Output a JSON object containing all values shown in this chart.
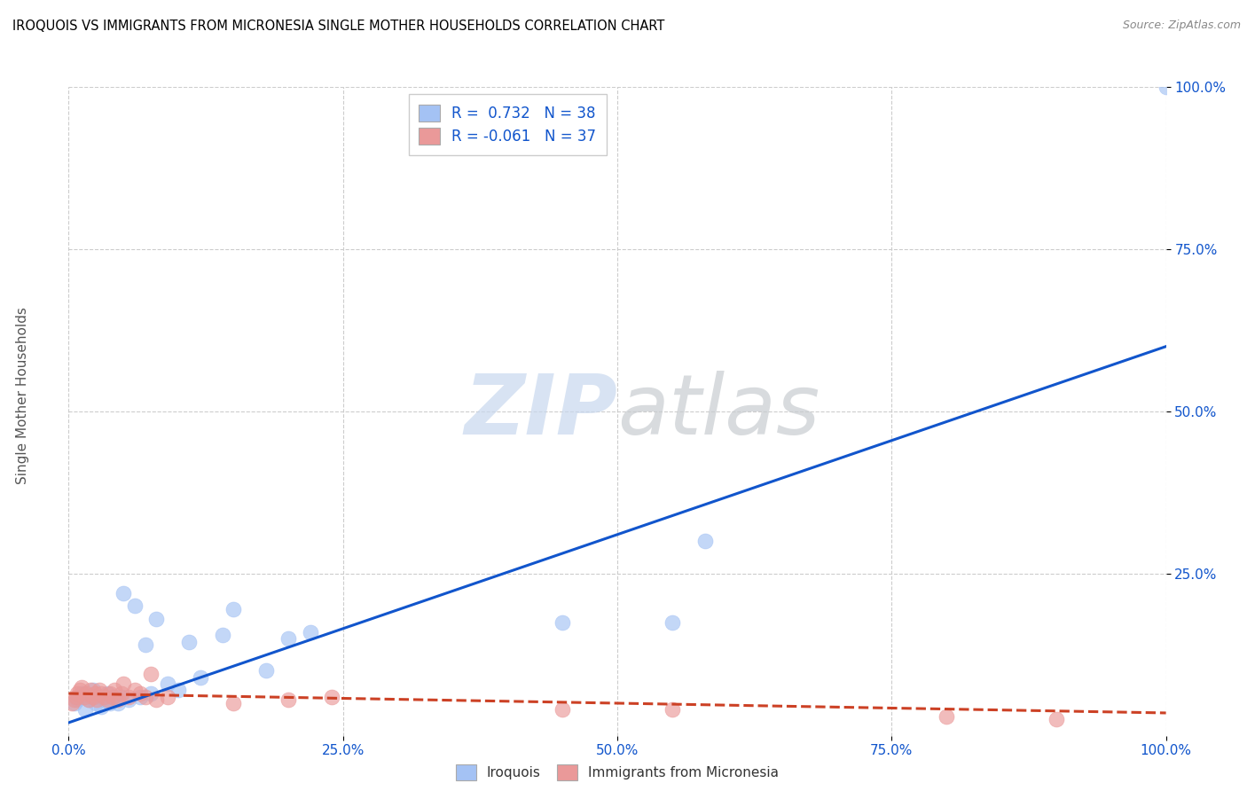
{
  "title": "IROQUOIS VS IMMIGRANTS FROM MICRONESIA SINGLE MOTHER HOUSEHOLDS CORRELATION CHART",
  "source": "Source: ZipAtlas.com",
  "ylabel": "Single Mother Households",
  "xlim": [
    0,
    1.0
  ],
  "ylim": [
    0,
    1.0
  ],
  "xtick_labels": [
    "0.0%",
    "25.0%",
    "50.0%",
    "75.0%",
    "100.0%"
  ],
  "xtick_vals": [
    0.0,
    0.25,
    0.5,
    0.75,
    1.0
  ],
  "ytick_labels": [
    "25.0%",
    "50.0%",
    "75.0%",
    "100.0%"
  ],
  "ytick_vals": [
    0.25,
    0.5,
    0.75,
    1.0
  ],
  "legend_entries": [
    "Iroquois",
    "Immigrants from Micronesia"
  ],
  "blue_R": 0.732,
  "blue_N": 38,
  "pink_R": -0.061,
  "pink_N": 37,
  "blue_color": "#a4c2f4",
  "pink_color": "#ea9999",
  "blue_line_color": "#1155cc",
  "pink_line_color": "#cc4125",
  "watermark_zip": "ZIP",
  "watermark_atlas": "atlas",
  "blue_scatter_x": [
    0.005,
    0.008,
    0.01,
    0.012,
    0.015,
    0.018,
    0.02,
    0.022,
    0.025,
    0.028,
    0.03,
    0.032,
    0.035,
    0.038,
    0.04,
    0.042,
    0.045,
    0.048,
    0.05,
    0.055,
    0.06,
    0.065,
    0.07,
    0.075,
    0.08,
    0.09,
    0.1,
    0.11,
    0.12,
    0.14,
    0.15,
    0.18,
    0.2,
    0.22,
    0.45,
    0.55,
    0.58,
    1.0
  ],
  "blue_scatter_y": [
    0.05,
    0.055,
    0.06,
    0.065,
    0.04,
    0.055,
    0.06,
    0.07,
    0.05,
    0.06,
    0.045,
    0.055,
    0.065,
    0.05,
    0.055,
    0.06,
    0.05,
    0.06,
    0.22,
    0.055,
    0.2,
    0.06,
    0.14,
    0.065,
    0.18,
    0.08,
    0.07,
    0.145,
    0.09,
    0.155,
    0.195,
    0.1,
    0.15,
    0.16,
    0.175,
    0.175,
    0.3,
    1.0
  ],
  "pink_scatter_x": [
    0.003,
    0.005,
    0.007,
    0.008,
    0.01,
    0.012,
    0.014,
    0.016,
    0.018,
    0.02,
    0.022,
    0.024,
    0.026,
    0.028,
    0.03,
    0.032,
    0.035,
    0.038,
    0.04,
    0.042,
    0.045,
    0.048,
    0.05,
    0.055,
    0.06,
    0.065,
    0.07,
    0.075,
    0.08,
    0.09,
    0.15,
    0.2,
    0.24,
    0.45,
    0.55,
    0.8,
    0.9
  ],
  "pink_scatter_y": [
    0.05,
    0.055,
    0.06,
    0.065,
    0.07,
    0.075,
    0.06,
    0.065,
    0.055,
    0.07,
    0.06,
    0.065,
    0.055,
    0.07,
    0.065,
    0.06,
    0.055,
    0.065,
    0.06,
    0.07,
    0.055,
    0.065,
    0.08,
    0.06,
    0.07,
    0.065,
    0.06,
    0.095,
    0.055,
    0.06,
    0.05,
    0.055,
    0.06,
    0.04,
    0.04,
    0.03,
    0.025
  ],
  "blue_line_x0": 0.0,
  "blue_line_y0": 0.02,
  "blue_line_x1": 1.0,
  "blue_line_y1": 0.6,
  "pink_line_x0": 0.0,
  "pink_line_y0": 0.065,
  "pink_line_x1": 1.0,
  "pink_line_y1": 0.035
}
